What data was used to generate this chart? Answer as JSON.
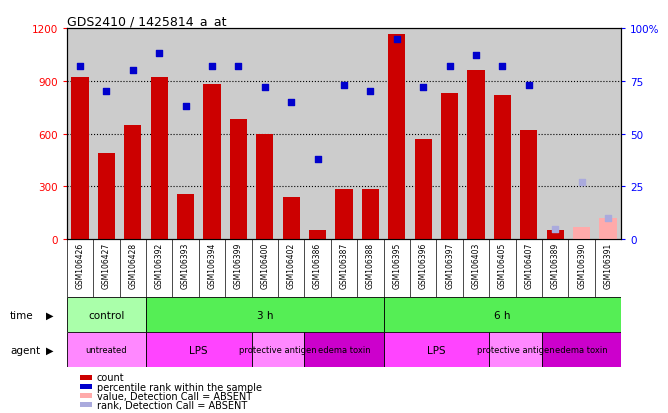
{
  "title": "GDS2410 / 1425814_a_at",
  "samples": [
    "GSM106426",
    "GSM106427",
    "GSM106428",
    "GSM106392",
    "GSM106393",
    "GSM106394",
    "GSM106399",
    "GSM106400",
    "GSM106402",
    "GSM106386",
    "GSM106387",
    "GSM106388",
    "GSM106395",
    "GSM106396",
    "GSM106397",
    "GSM106403",
    "GSM106405",
    "GSM106407",
    "GSM106389",
    "GSM106390",
    "GSM106391"
  ],
  "counts": [
    920,
    490,
    650,
    920,
    255,
    880,
    680,
    600,
    240,
    50,
    285,
    285,
    1165,
    570,
    830,
    960,
    820,
    620,
    50,
    70,
    120
  ],
  "absent_count_indices": [
    19,
    20
  ],
  "ranks": [
    82,
    70,
    80,
    88,
    63,
    82,
    82,
    72,
    65,
    38,
    73,
    70,
    95,
    72,
    82,
    87,
    82,
    73,
    5,
    27,
    10
  ],
  "absent_rank_indices": [
    18,
    19,
    20
  ],
  "time_groups": [
    {
      "label": "control",
      "start": 0,
      "end": 3,
      "color": "#aaffaa"
    },
    {
      "label": "3 h",
      "start": 3,
      "end": 12,
      "color": "#55ee55"
    },
    {
      "label": "6 h",
      "start": 12,
      "end": 21,
      "color": "#55ee55"
    }
  ],
  "agent_groups": [
    {
      "label": "untreated",
      "start": 0,
      "end": 3,
      "color": "#ff88ff"
    },
    {
      "label": "LPS",
      "start": 3,
      "end": 7,
      "color": "#ff44ff"
    },
    {
      "label": "protective antigen",
      "start": 7,
      "end": 9,
      "color": "#ff88ff"
    },
    {
      "label": "edema toxin",
      "start": 9,
      "end": 12,
      "color": "#cc00cc"
    },
    {
      "label": "LPS",
      "start": 12,
      "end": 16,
      "color": "#ff44ff"
    },
    {
      "label": "protective antigen",
      "start": 16,
      "end": 18,
      "color": "#ff88ff"
    },
    {
      "label": "edema toxin",
      "start": 18,
      "end": 21,
      "color": "#cc00cc"
    }
  ],
  "bar_color": "#cc0000",
  "absent_bar_color": "#ffaaaa",
  "rank_color": "#0000cc",
  "absent_rank_color": "#aaaadd",
  "ylim_left": [
    0,
    1200
  ],
  "ylim_right": [
    0,
    100
  ],
  "yticks_left": [
    0,
    300,
    600,
    900,
    1200
  ],
  "yticks_right": [
    0,
    25,
    50,
    75,
    100
  ],
  "bg_color": "#cccccc",
  "xlim": [
    -0.5,
    20.5
  ]
}
